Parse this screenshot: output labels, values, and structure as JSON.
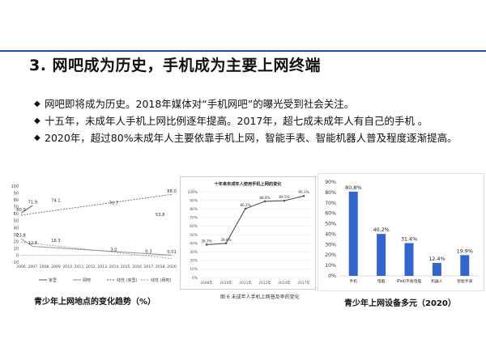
{
  "colors": {
    "accent_bar": "#1f4e9c",
    "bar": "#3366cc",
    "line_dark": "#666666",
    "line_light": "#999999"
  },
  "slide": {
    "title": "3. 网吧成为历史，手机成为主要上网终端",
    "bullets": [
      "网吧即将成为历史。2018年媒体对“手机网吧”的曝光受到社会关注。",
      "十五年，未成年人手机上网比例逐年提高。2017年，超七成未成年人有自己的手机 。",
      "2020年，超过80%未成年人主要依靠手机上网，智能手表、智能机器人普及程度逐渐提高。"
    ],
    "bullet_marker": "◆"
  },
  "captions": {
    "left": "青少年上网地点的变化趋势（%）",
    "middle": "图 6 未成年人手机上网普及率的变化",
    "right": "青少年上网设备多元（2020）"
  },
  "chart_data": [
    {
      "type": "line",
      "title": "",
      "categories": [
        "2006",
        "2007",
        "2008",
        "2009",
        "2010",
        "2011",
        "2012",
        "2013",
        "2014",
        "2015",
        "2016",
        "2017",
        "2018",
        "2020"
      ],
      "ylim": [
        -10,
        100
      ],
      "yticks": [
        -10,
        0,
        10,
        20,
        30,
        40,
        50,
        60,
        70,
        80,
        90,
        100
      ],
      "series": [
        {
          "name": "家里",
          "style": "solid-dark",
          "points": [
            {
              "x": "2006",
              "y": 60.9
            },
            {
              "x": "2007",
              "y": 71.9
            }
          ]
        },
        {
          "name": "网吧",
          "style": "solid-light",
          "points": [
            {
              "x": "2006",
              "y": 23.8
            },
            {
              "x": "2007",
              "y": 12.8
            },
            {
              "x": "2020",
              "y": 0.01
            }
          ]
        },
        {
          "name": "线性 (家里)",
          "style": "dashed-dark",
          "points": [
            {
              "x": "2006",
              "y": 58
            },
            {
              "x": "2020",
              "y": 88.0
            }
          ]
        },
        {
          "name": "线性 (网吧)",
          "style": "dashed-light",
          "points": [
            {
              "x": "2006",
              "y": 19
            },
            {
              "x": "2020",
              "y": -5
            }
          ]
        }
      ],
      "data_labels": [
        {
          "x": "2006",
          "y": 60.9,
          "text": "60.9"
        },
        {
          "x": "2007",
          "y": 71.9,
          "text": "71.9"
        },
        {
          "x": "2009",
          "y": 74.1,
          "text": "74.1"
        },
        {
          "x": "2014",
          "y": 70.7,
          "text": "70.7"
        },
        {
          "x": "2018",
          "y": 53.8,
          "text": "53.8"
        },
        {
          "x": "2020",
          "y": 88.0,
          "text": "88.0"
        },
        {
          "x": "2006",
          "y": 23.8,
          "text": "23.8"
        },
        {
          "x": "2007",
          "y": 12.8,
          "text": "12.8"
        },
        {
          "x": "2009",
          "y": 16.3,
          "text": "16.3"
        },
        {
          "x": "2014",
          "y": 3.0,
          "text": "3.0"
        },
        {
          "x": "2017",
          "y": 0.3,
          "text": "0.3"
        },
        {
          "x": "2020",
          "y": 0.01,
          "text": "0.01"
        }
      ],
      "legend": [
        "家里",
        "网吧",
        "线性 (家里)",
        "线性 (网吧)"
      ],
      "legend_position": "bottom",
      "grid": false
    },
    {
      "type": "line",
      "title": "十年来未成年人使用手机上网的变化",
      "categories": [
        "2008年",
        "2010年",
        "2011年",
        "2012年",
        "2014年",
        "2017年"
      ],
      "ylim": [
        0,
        100
      ],
      "yticks": [
        0,
        10,
        20,
        30,
        40,
        50,
        60,
        70,
        80,
        90,
        100
      ],
      "ytick_suffix": "%",
      "series": [
        {
          "name": "",
          "values": [
            38.3,
            39.8,
            80.2,
            88.8,
            89.5,
            95.1
          ]
        }
      ],
      "data_labels": [
        "38.3%",
        "39.8%",
        "80.2%",
        "88.8%",
        "89.5%",
        "95.1%"
      ],
      "grid": true
    },
    {
      "type": "bar",
      "title": "",
      "categories": [
        "手机",
        "电脑",
        "iPad/平板电脑",
        "机器人",
        "智能手表"
      ],
      "values": [
        80.8,
        40.2,
        31.4,
        12.4,
        19.9
      ],
      "data_labels": [
        "80.8%",
        "40.2%",
        "31.4%",
        "12.4%",
        "19.9%"
      ],
      "ylim": [
        0,
        90
      ],
      "yticks": [
        0,
        10,
        20,
        30,
        40,
        50,
        60,
        70,
        80,
        90
      ],
      "ytick_suffix": "%",
      "grid": false
    }
  ]
}
